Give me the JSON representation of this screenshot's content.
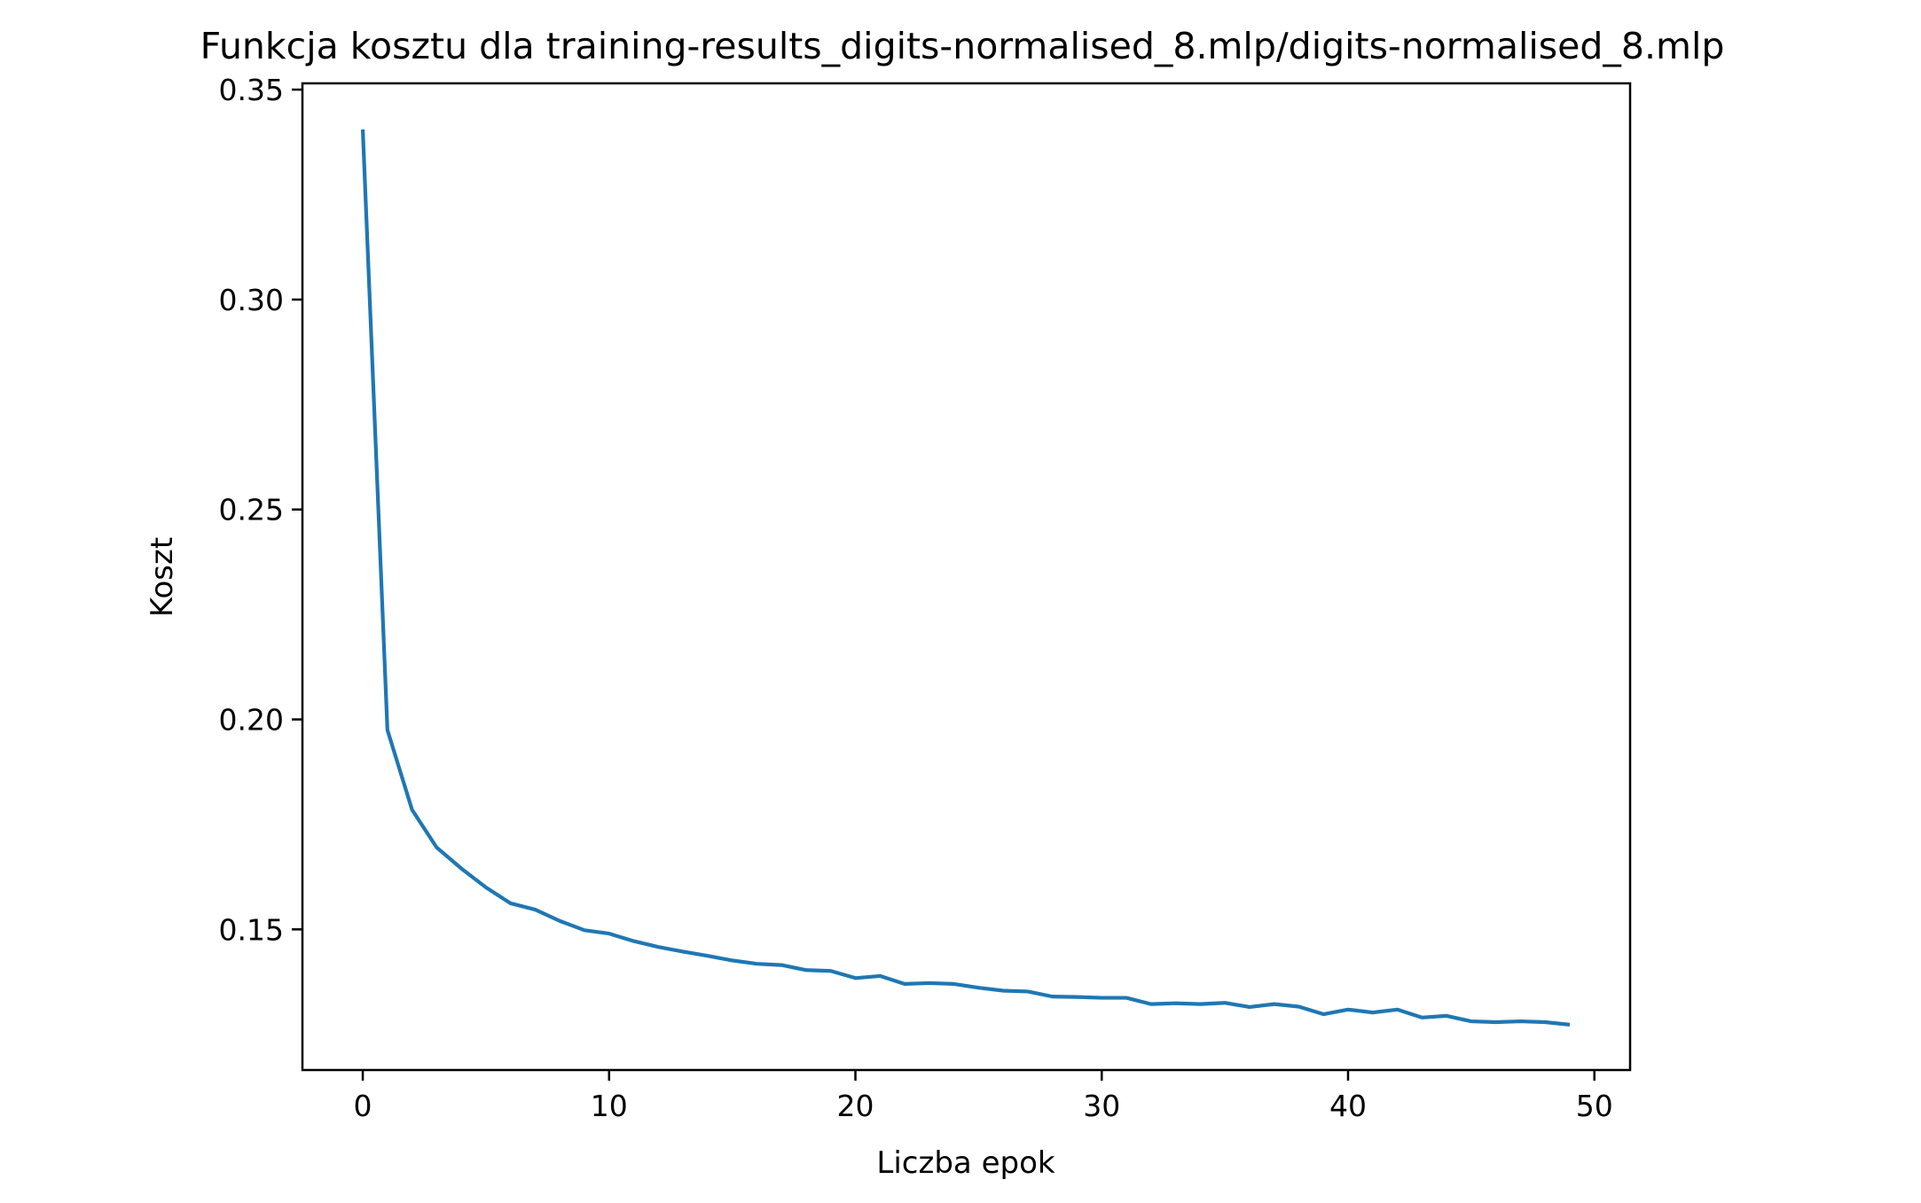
{
  "chart_data": {
    "type": "line",
    "title": "Funkcja kosztu dla training-results_digits-normalised_8.mlp/digits-normalised_8.mlp",
    "xlabel": "Liczba epok",
    "ylabel": "Koszt",
    "xlim": [
      -2.45,
      51.45
    ],
    "ylim": [
      0.1165,
      0.3515
    ],
    "xticks": [
      0,
      10,
      20,
      30,
      40,
      50
    ],
    "xtick_labels": [
      "0",
      "10",
      "20",
      "30",
      "40",
      "50"
    ],
    "yticks": [
      0.15,
      0.2,
      0.25,
      0.3,
      0.35
    ],
    "ytick_labels": [
      "0.15",
      "0.20",
      "0.25",
      "0.30",
      "0.35"
    ],
    "grid": false,
    "legend": "none",
    "series": [
      {
        "color": "#1f77b4",
        "x": [
          0,
          1,
          2,
          3,
          4,
          5,
          6,
          7,
          8,
          9,
          10,
          11,
          12,
          13,
          14,
          15,
          16,
          17,
          18,
          19,
          20,
          21,
          22,
          23,
          24,
          25,
          26,
          27,
          28,
          29,
          30,
          31,
          32,
          33,
          34,
          35,
          36,
          37,
          38,
          39,
          40,
          41,
          42,
          43,
          44,
          45,
          46,
          47,
          48,
          49
        ],
        "values": [
          0.3405,
          0.1975,
          0.1785,
          0.1695,
          0.1645,
          0.16,
          0.1562,
          0.1547,
          0.152,
          0.1498,
          0.149,
          0.1472,
          0.1458,
          0.1447,
          0.1437,
          0.1426,
          0.1418,
          0.1415,
          0.1403,
          0.1401,
          0.1384,
          0.1389,
          0.137,
          0.1372,
          0.137,
          0.1361,
          0.1354,
          0.1352,
          0.134,
          0.1339,
          0.1337,
          0.1337,
          0.1322,
          0.1324,
          0.1322,
          0.1325,
          0.1315,
          0.1322,
          0.1316,
          0.1298,
          0.1309,
          0.1302,
          0.1309,
          0.129,
          0.1294,
          0.1281,
          0.1279,
          0.1281,
          0.1279,
          0.1273
        ]
      }
    ]
  }
}
